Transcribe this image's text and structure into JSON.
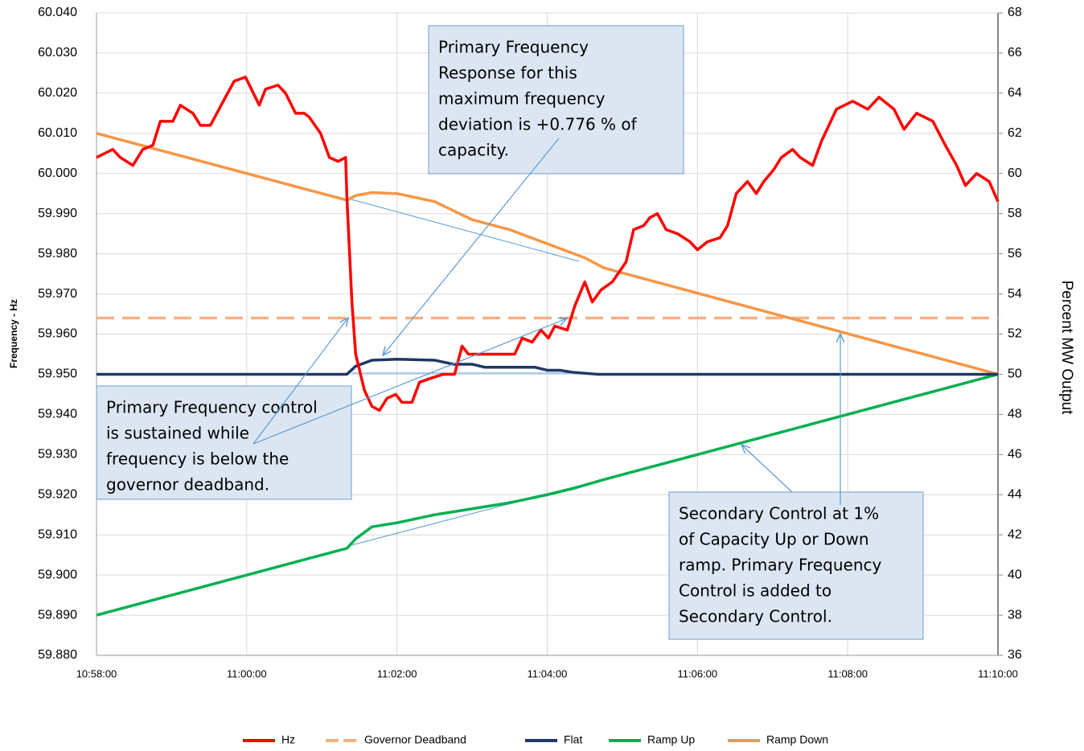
{
  "chart_data": {
    "type": "line",
    "ylabel": "Frequency - Hz",
    "y2label": "Percent MW Output",
    "xlim": [
      "10:58:00",
      "11:10:00"
    ],
    "xticks": [
      "10:58:00",
      "11:00:00",
      "11:02:00",
      "11:04:00",
      "11:06:00",
      "11:08:00",
      "11:10:00"
    ],
    "ylim": [
      59.88,
      60.04
    ],
    "yticks": [
      {
        "value": 59.88,
        "label": "59.880"
      },
      {
        "value": 59.89,
        "label": "59.890"
      },
      {
        "value": 59.9,
        "label": "59.900"
      },
      {
        "value": 59.91,
        "label": "59.910"
      },
      {
        "value": 59.92,
        "label": "59.920"
      },
      {
        "value": 59.93,
        "label": "59.930"
      },
      {
        "value": 59.94,
        "label": "59.940"
      },
      {
        "value": 59.95,
        "label": "59.950"
      },
      {
        "value": 59.96,
        "label": "59.960"
      },
      {
        "value": 59.97,
        "label": "59.970"
      },
      {
        "value": 59.98,
        "label": "59.980"
      },
      {
        "value": 59.99,
        "label": "59.990"
      },
      {
        "value": 60.0,
        "label": "60.000"
      },
      {
        "value": 60.01,
        "label": "60.010"
      },
      {
        "value": 60.02,
        "label": "60.020"
      },
      {
        "value": 60.03,
        "label": "60.030"
      },
      {
        "value": 60.04,
        "label": "60.040"
      }
    ],
    "y2lim": [
      36,
      68
    ],
    "y2ticks": [
      36,
      38,
      40,
      42,
      44,
      46,
      48,
      50,
      52,
      54,
      56,
      58,
      60,
      62,
      64,
      66,
      68
    ],
    "grid": true,
    "legend": "bottom",
    "series": [
      {
        "name": "Hz",
        "color": "#ff0000",
        "x": [
          "10:58:00",
          "10:58:13",
          "10:58:19",
          "10:58:29",
          "10:58:37",
          "10:58:45",
          "10:58:51",
          "10:59:01",
          "10:59:07",
          "10:59:17",
          "10:59:23",
          "10:59:31",
          "10:59:43",
          "10:59:50",
          "10:59:59",
          "11:00:10",
          "11:00:15",
          "11:00:25",
          "11:00:31",
          "11:00:39",
          "11:00:46",
          "11:00:50",
          "11:00:59",
          "11:01:06",
          "11:01:13",
          "11:01:19",
          "11:01:20",
          "11:01:24",
          "11:01:27",
          "11:01:34",
          "11:01:40",
          "11:01:46",
          "11:01:52",
          "11:01:59",
          "11:02:04",
          "11:02:12",
          "11:02:18",
          "11:02:27",
          "11:02:37",
          "11:02:46",
          "11:02:52",
          "11:02:57",
          "11:03:07",
          "11:03:16",
          "11:03:34",
          "11:03:40",
          "11:03:48",
          "11:03:55",
          "11:04:01",
          "11:04:06",
          "11:04:16",
          "11:04:22",
          "11:04:30",
          "11:04:36",
          "11:04:43",
          "11:04:52",
          "11:05:03",
          "11:05:09",
          "11:05:17",
          "11:05:22",
          "11:05:28",
          "11:05:35",
          "11:05:44",
          "11:05:54",
          "11:06:00",
          "11:06:08",
          "11:06:18",
          "11:06:24",
          "11:06:31",
          "11:06:40",
          "11:06:47",
          "11:06:53",
          "11:07:01",
          "11:07:07",
          "11:07:16",
          "11:07:22",
          "11:07:32",
          "11:07:39",
          "11:07:51",
          "11:08:04",
          "11:08:16",
          "11:08:25",
          "11:08:37",
          "11:08:45",
          "11:08:55",
          "11:09:08",
          "11:09:18",
          "11:09:27",
          "11:09:34",
          "11:09:43",
          "11:09:53",
          "11:10:00"
        ],
        "values": [
          60.004,
          60.006,
          60.004,
          60.002,
          60.006,
          60.007,
          60.013,
          60.013,
          60.017,
          60.015,
          60.012,
          60.012,
          60.019,
          60.023,
          60.024,
          60.017,
          60.021,
          60.022,
          60.02,
          60.015,
          60.015,
          60.014,
          60.01,
          60.004,
          60.003,
          60.004,
          59.994,
          59.968,
          59.955,
          59.946,
          59.942,
          59.941,
          59.944,
          59.945,
          59.943,
          59.943,
          59.948,
          59.949,
          59.95,
          59.95,
          59.957,
          59.955,
          59.955,
          59.955,
          59.955,
          59.959,
          59.958,
          59.961,
          59.959,
          59.962,
          59.961,
          59.967,
          59.973,
          59.968,
          59.971,
          59.973,
          59.978,
          59.986,
          59.987,
          59.989,
          59.99,
          59.986,
          59.985,
          59.983,
          59.981,
          59.983,
          59.984,
          59.987,
          59.995,
          59.998,
          59.995,
          59.998,
          60.001,
          60.004,
          60.006,
          60.004,
          60.002,
          60.008,
          60.016,
          60.018,
          60.016,
          60.019,
          60.016,
          60.011,
          60.015,
          60.013,
          60.007,
          60.002,
          59.997,
          60.0,
          59.998,
          59.993
        ]
      },
      {
        "name": "Governor Deadband",
        "color": "#f4b183",
        "dashed": true,
        "x": [
          "10:58:00",
          "11:10:00"
        ],
        "values": [
          59.964,
          59.964
        ]
      },
      {
        "name": "Flat",
        "color": "#1f3864",
        "axis": "y2",
        "x": [
          "10:58:00",
          "11:01:20",
          "11:01:27",
          "11:01:40",
          "11:02:00",
          "11:02:30",
          "11:02:45",
          "11:03:00",
          "11:03:10",
          "11:03:50",
          "11:04:00",
          "11:04:10",
          "11:04:20",
          "11:04:40",
          "11:10:00"
        ],
        "values": [
          50,
          50,
          50.4,
          50.7,
          50.75,
          50.7,
          50.5,
          50.5,
          50.35,
          50.35,
          50.2,
          50.2,
          50.1,
          50,
          50
        ]
      },
      {
        "name": "Ramp Up",
        "color": "#00b050",
        "axis": "y2",
        "x": [
          "10:58:00",
          "11:01:20",
          "11:01:27",
          "11:01:40",
          "11:02:00",
          "11:02:30",
          "11:03:00",
          "11:03:30",
          "11:04:00",
          "11:04:20",
          "11:04:45",
          "11:10:00"
        ],
        "values": [
          38,
          41.33,
          41.8,
          42.4,
          42.6,
          43.0,
          43.3,
          43.6,
          44.0,
          44.3,
          44.75,
          50
        ]
      },
      {
        "name": "Ramp Down",
        "color": "#f79646",
        "axis": "y2",
        "x": [
          "10:58:00",
          "11:01:20",
          "11:01:27",
          "11:01:40",
          "11:02:00",
          "11:02:30",
          "11:03:00",
          "11:03:30",
          "11:04:00",
          "11:04:30",
          "11:04:45",
          "11:10:00"
        ],
        "values": [
          62,
          58.67,
          58.9,
          59.05,
          59.0,
          58.6,
          57.7,
          57.2,
          56.5,
          55.8,
          55.3,
          50
        ]
      }
    ],
    "annotations": [
      {
        "lines": [
          "Primary Frequency",
          "Response  for this",
          "maximum frequency",
          "deviation  is +0.776  % of",
          "capacity."
        ]
      },
      {
        "lines": [
          "Primary Frequency  control",
          "is sustained  while",
          "frequency  is below the",
          "governor  deadband."
        ]
      },
      {
        "lines": [
          "Secondary  Control  at 1%",
          "of Capacity Up or Down",
          "ramp.  Primary Frequency",
          "Control  is added to",
          "Secondary Control."
        ]
      }
    ]
  }
}
